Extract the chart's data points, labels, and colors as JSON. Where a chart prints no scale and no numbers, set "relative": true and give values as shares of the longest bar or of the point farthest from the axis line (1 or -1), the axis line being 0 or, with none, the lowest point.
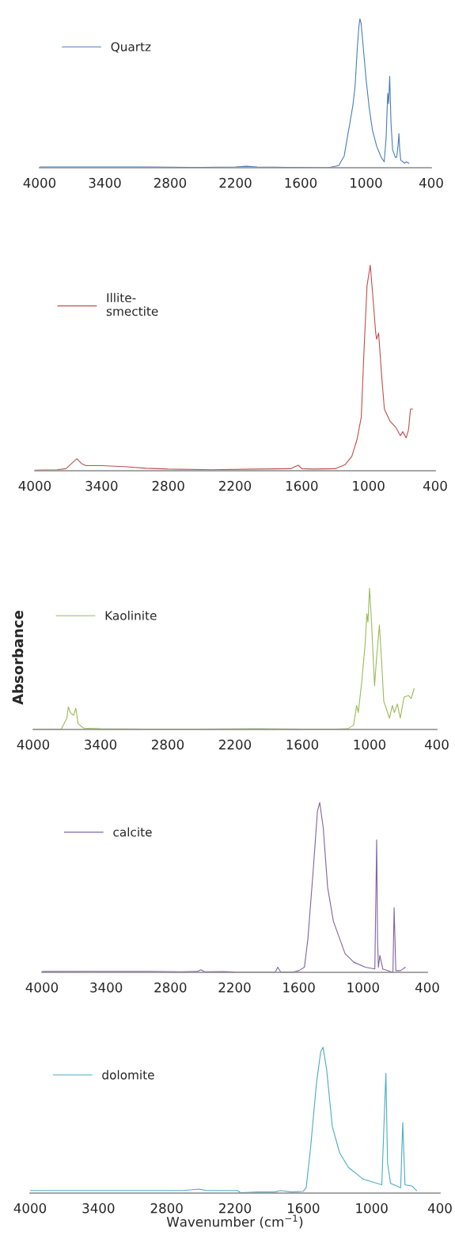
{
  "chart_data": [
    {
      "type": "line",
      "relative": true,
      "xlim": [
        4000,
        400
      ],
      "xticks": [
        4000,
        3400,
        2800,
        2200,
        1600,
        1000,
        400
      ],
      "legend": "top left",
      "series": [
        {
          "name": "Quartz",
          "color": "#4a7ebb",
          "x": [
            4000,
            3500,
            3000,
            2600,
            2200,
            2100,
            2000,
            1700,
            1350,
            1250,
            1200,
            1165,
            1150,
            1120,
            1100,
            1080,
            1065,
            1056,
            1045,
            1030,
            1000,
            970,
            940,
            900,
            860,
            832,
            815,
            800,
            792,
            782,
            770,
            755,
            730,
            718,
            705,
            697,
            690,
            680,
            660,
            646,
            630,
            606
          ],
          "values": [
            0.005,
            0.005,
            0.005,
            0.002,
            0.005,
            0.01,
            0.005,
            0.003,
            0.0,
            0.015,
            0.08,
            0.23,
            0.29,
            0.42,
            0.55,
            0.8,
            0.95,
            1.0,
            0.97,
            0.85,
            0.6,
            0.4,
            0.25,
            0.14,
            0.07,
            0.04,
            0.2,
            0.5,
            0.43,
            0.615,
            0.3,
            0.12,
            0.07,
            0.07,
            0.15,
            0.23,
            0.12,
            0.05,
            0.04,
            0.03,
            0.04,
            0.03
          ]
        }
      ]
    },
    {
      "type": "line",
      "relative": true,
      "xlim": [
        4000,
        400
      ],
      "xticks": [
        4000,
        3400,
        2800,
        2200,
        1600,
        1000,
        400
      ],
      "legend": "top left",
      "series": [
        {
          "name": "Illite-\nsmectite",
          "color": "#c0504d",
          "x": [
            4000,
            3800,
            3720,
            3660,
            3622,
            3580,
            3540,
            3400,
            3200,
            3000,
            2800,
            2400,
            2000,
            1700,
            1660,
            1631,
            1600,
            1500,
            1300,
            1209,
            1150,
            1104,
            1065,
            1039,
            1013,
            984,
            961,
            935,
            927,
            909,
            880,
            857,
            805,
            753,
            713,
            692,
            661,
            640,
            622,
            603
          ],
          "values": [
            0.003,
            0.005,
            0.01,
            0.04,
            0.058,
            0.035,
            0.025,
            0.025,
            0.02,
            0.012,
            0.008,
            0.005,
            0.008,
            0.01,
            0.02,
            0.027,
            0.01,
            0.008,
            0.01,
            0.03,
            0.07,
            0.15,
            0.26,
            0.6,
            0.9,
            1.0,
            0.85,
            0.67,
            0.64,
            0.67,
            0.45,
            0.3,
            0.24,
            0.21,
            0.17,
            0.19,
            0.16,
            0.2,
            0.3,
            0.3
          ]
        }
      ]
    },
    {
      "type": "line",
      "relative": true,
      "xlim": [
        4000,
        400
      ],
      "xticks": [
        4000,
        3400,
        2800,
        2200,
        1600,
        1000,
        400
      ],
      "legend": "top left",
      "ylabel": "Absorbance",
      "series": [
        {
          "name": "Kaolinite",
          "color": "#9bbb59",
          "x": [
            4000,
            3750,
            3700,
            3687,
            3670,
            3640,
            3620,
            3600,
            3550,
            3400,
            3000,
            2500,
            2000,
            1600,
            1300,
            1194,
            1142,
            1115,
            1100,
            1068,
            1040,
            1024,
            1014,
            1000,
            985,
            955,
            938,
            912,
            890,
            873,
            822,
            796,
            778,
            752,
            726,
            692,
            653,
            628,
            602
          ],
          "values": [
            0.0,
            0.003,
            0.08,
            0.16,
            0.12,
            0.1,
            0.15,
            0.04,
            0.01,
            0.005,
            0.003,
            0.002,
            0.005,
            0.003,
            0.003,
            0.005,
            0.03,
            0.17,
            0.12,
            0.35,
            0.6,
            0.82,
            0.76,
            1.0,
            0.8,
            0.31,
            0.5,
            0.74,
            0.45,
            0.2,
            0.08,
            0.17,
            0.12,
            0.18,
            0.08,
            0.23,
            0.24,
            0.22,
            0.29
          ]
        }
      ]
    },
    {
      "type": "line",
      "relative": true,
      "xlim": [
        4000,
        400
      ],
      "xticks": [
        4000,
        3400,
        2800,
        2200,
        1600,
        1000,
        400
      ],
      "legend": "top left",
      "series": [
        {
          "name": "calcite",
          "color": "#8064a2",
          "x": [
            4000,
            3500,
            3000,
            2700,
            2550,
            2515,
            2480,
            2300,
            2200,
            2000,
            1820,
            1797,
            1770,
            1650,
            1600,
            1548,
            1515,
            1466,
            1426,
            1405,
            1372,
            1331,
            1277,
            1168,
            1087,
            979,
            890,
            873,
            865,
            857,
            843,
            816,
            721,
            710,
            694,
            650,
            605
          ],
          "values": [
            0.005,
            0.006,
            0.006,
            0.003,
            0.005,
            0.015,
            0.003,
            0.004,
            0.002,
            0.001,
            0.002,
            0.03,
            0.002,
            0.002,
            0.01,
            0.03,
            0.2,
            0.6,
            0.95,
            1.0,
            0.85,
            0.5,
            0.3,
            0.11,
            0.06,
            0.03,
            0.02,
            0.78,
            0.2,
            0.03,
            0.1,
            0.02,
            0.0,
            0.38,
            0.01,
            0.01,
            0.03
          ]
        }
      ]
    },
    {
      "type": "line",
      "relative": true,
      "xlim": [
        4000,
        400
      ],
      "xticks": [
        4000,
        3400,
        2800,
        2200,
        1600,
        1000,
        400
      ],
      "legend": "top left",
      "xlabel": "Wavenumber (cm$^{−1}$)",
      "series": [
        {
          "name": "dolomite",
          "color": "#4bacc6",
          "x": [
            4000,
            3500,
            3000,
            2650,
            2520,
            2450,
            2300,
            2180,
            2150,
            2000,
            1850,
            1800,
            1700,
            1600,
            1575,
            1537,
            1485,
            1447,
            1427,
            1396,
            1345,
            1281,
            1204,
            1077,
            911,
            875,
            860,
            834,
            745,
            727,
            707,
            643,
            605
          ],
          "values": [
            0.01,
            0.01,
            0.01,
            0.01,
            0.02,
            0.01,
            0.01,
            0.01,
            -0.005,
            0.0,
            0.0,
            0.01,
            0.0,
            0.005,
            0.03,
            0.3,
            0.75,
            0.97,
            1.0,
            0.85,
            0.45,
            0.27,
            0.17,
            0.09,
            0.05,
            0.82,
            0.2,
            0.06,
            0.03,
            0.48,
            0.05,
            0.04,
            0.01
          ]
        }
      ]
    }
  ]
}
